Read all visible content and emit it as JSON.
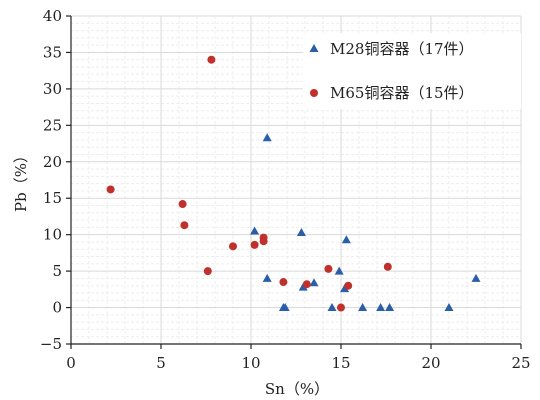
{
  "chart_data": {
    "type": "scatter",
    "xlabel": "Sn（%）",
    "ylabel": "Pb（%）",
    "xlim": [
      0,
      25
    ],
    "ylim": [
      -5,
      40
    ],
    "xticks": [
      0,
      5,
      10,
      15,
      20,
      25
    ],
    "yticks": [
      -5,
      0,
      5,
      10,
      15,
      20,
      25,
      30,
      35,
      40
    ],
    "grid": true,
    "legend_position": "top-right",
    "series": [
      {
        "name": "M28铜容器（17件）",
        "marker": "triangle",
        "color": "#2a5ea8",
        "points": [
          [
            10.2,
            10.5
          ],
          [
            10.9,
            23.3
          ],
          [
            10.9,
            4.0
          ],
          [
            11.8,
            0.0
          ],
          [
            11.9,
            0.0
          ],
          [
            12.8,
            10.3
          ],
          [
            12.9,
            2.8
          ],
          [
            13.5,
            3.4
          ],
          [
            14.5,
            0.0
          ],
          [
            14.9,
            5.0
          ],
          [
            15.2,
            2.6
          ],
          [
            15.3,
            9.3
          ],
          [
            16.2,
            0.0
          ],
          [
            17.2,
            0.0
          ],
          [
            17.7,
            0.0
          ],
          [
            21.0,
            0.0
          ],
          [
            22.5,
            4.0
          ]
        ]
      },
      {
        "name": "M65铜容器（15件）",
        "marker": "circle",
        "color": "#c0302c",
        "points": [
          [
            2.2,
            16.2
          ],
          [
            6.2,
            14.2
          ],
          [
            6.3,
            11.3
          ],
          [
            7.6,
            5.0
          ],
          [
            7.8,
            34.0
          ],
          [
            9.0,
            8.4
          ],
          [
            10.2,
            8.6
          ],
          [
            10.7,
            9.6
          ],
          [
            10.7,
            9.1
          ],
          [
            11.8,
            3.5
          ],
          [
            13.1,
            3.2
          ],
          [
            14.3,
            5.3
          ],
          [
            15.0,
            0.0
          ],
          [
            15.4,
            3.0
          ],
          [
            17.6,
            5.6
          ]
        ]
      }
    ]
  }
}
